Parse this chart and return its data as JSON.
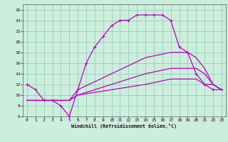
{
  "xlabel": "Windchill (Refroidissement éolien,°C)",
  "bg_color": "#cceedd",
  "grid_color": "#99ccbb",
  "line_color": "#bb00bb",
  "xlim_min": -0.5,
  "xlim_max": 23.5,
  "ylim_min": 6,
  "ylim_max": 27,
  "xticks": [
    0,
    1,
    2,
    3,
    4,
    5,
    6,
    7,
    8,
    9,
    10,
    11,
    12,
    13,
    14,
    15,
    16,
    17,
    18,
    19,
    20,
    21,
    22,
    23
  ],
  "yticks": [
    6,
    8,
    10,
    12,
    14,
    16,
    18,
    20,
    22,
    24,
    26
  ],
  "line1_x": [
    0,
    1,
    2,
    3,
    4,
    5,
    6,
    7,
    8,
    9,
    10,
    11,
    12,
    13,
    14,
    15,
    16,
    17,
    18,
    19,
    20,
    21,
    22,
    23
  ],
  "line1_y": [
    12,
    11,
    9,
    9,
    8,
    6,
    11,
    16,
    19,
    21,
    23,
    24,
    24,
    25,
    25,
    25,
    25,
    24,
    19,
    18,
    14,
    12,
    11,
    11
  ],
  "line2_x": [
    0,
    1,
    2,
    3,
    4,
    5,
    6,
    10,
    14,
    17,
    19,
    20,
    21,
    22,
    23
  ],
  "line2_y": [
    9,
    9,
    9,
    9,
    9,
    9,
    11,
    14,
    17,
    18,
    18,
    17,
    15,
    12,
    11
  ],
  "line3_x": [
    0,
    1,
    2,
    3,
    4,
    5,
    6,
    10,
    14,
    17,
    19,
    20,
    21,
    22,
    23
  ],
  "line3_y": [
    9,
    9,
    9,
    9,
    9,
    9,
    10,
    12,
    14,
    15,
    15,
    15,
    14,
    12,
    11
  ],
  "line4_x": [
    0,
    1,
    2,
    3,
    4,
    5,
    6,
    10,
    14,
    17,
    19,
    20,
    21,
    22,
    23
  ],
  "line4_y": [
    9,
    9,
    9,
    9,
    9,
    9,
    10,
    11,
    12,
    13,
    13,
    13,
    12,
    12,
    11
  ]
}
